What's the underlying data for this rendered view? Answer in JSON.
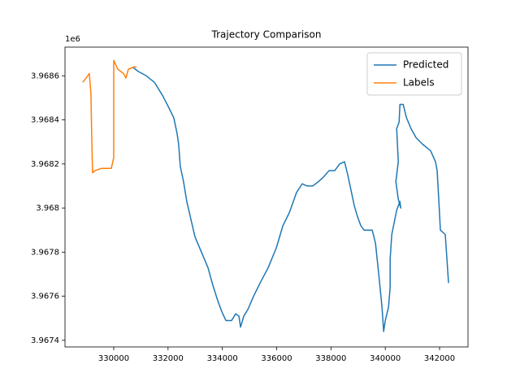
{
  "chart_data": {
    "type": "line",
    "title": "Trajectory Comparison",
    "y_offset_label": "1e6",
    "xlim": [
      328205,
      343047
    ],
    "ylim": [
      3.96737,
      3.96873
    ],
    "xticks": [
      330000,
      332000,
      334000,
      336000,
      338000,
      340000,
      342000
    ],
    "yticks": [
      3.9674,
      3.9676,
      3.9678,
      3.968,
      3.9682,
      3.9684,
      3.9686
    ],
    "grid": false,
    "legend_loc": "upper right",
    "series": [
      {
        "name": "Predicted",
        "color": "#1f77b4",
        "x": [
          330690,
          330900,
          331200,
          331500,
          331800,
          332010,
          332210,
          332330,
          332390,
          332450,
          332570,
          332690,
          332840,
          332990,
          333230,
          333470,
          333650,
          333830,
          333980,
          334130,
          334340,
          334490,
          334610,
          334670,
          334790,
          334940,
          335150,
          335390,
          335690,
          335990,
          336230,
          336470,
          336730,
          336940,
          337120,
          337330,
          337540,
          337720,
          337930,
          338140,
          338320,
          338500,
          338620,
          338740,
          338860,
          338980,
          339100,
          339220,
          339340,
          339520,
          339640,
          339760,
          339880,
          339940,
          340000,
          340120,
          340180,
          340180,
          340240,
          340420,
          340540,
          340570,
          340480,
          340390,
          340480,
          340420,
          340510,
          340540,
          340660,
          340780,
          340950,
          341130,
          341370,
          341670,
          341850,
          341910,
          341970,
          342030,
          342210,
          342270,
          342330
        ],
        "values": [
          3.96864,
          3.96862,
          3.9686,
          3.96857,
          3.96851,
          3.96846,
          3.96841,
          3.96834,
          3.96829,
          3.96819,
          3.96812,
          3.96803,
          3.96795,
          3.96787,
          3.9678,
          3.96773,
          3.96765,
          3.96758,
          3.96753,
          3.96749,
          3.96749,
          3.96752,
          3.96751,
          3.96746,
          3.96751,
          3.96754,
          3.9676,
          3.96766,
          3.96773,
          3.96782,
          3.96792,
          3.96798,
          3.96807,
          3.96811,
          3.9681,
          3.9681,
          3.96812,
          3.96814,
          3.96817,
          3.96817,
          3.9682,
          3.96821,
          3.96815,
          3.96808,
          3.96801,
          3.96796,
          3.96792,
          3.9679,
          3.9679,
          3.9679,
          3.96784,
          3.9677,
          3.96755,
          3.96744,
          3.96749,
          3.96755,
          3.96764,
          3.96777,
          3.96788,
          3.96799,
          3.96803,
          3.968,
          3.96804,
          3.96812,
          3.96821,
          3.96836,
          3.96839,
          3.96847,
          3.96847,
          3.96841,
          3.96836,
          3.96832,
          3.96829,
          3.96826,
          3.96821,
          3.96817,
          3.96804,
          3.9679,
          3.96788,
          3.96777,
          3.96766
        ]
      },
      {
        "name": "Labels",
        "color": "#ff7f0e",
        "x": [
          328860,
          329040,
          329100,
          329160,
          329190,
          329220,
          329310,
          329550,
          329760,
          329910,
          330000,
          330000,
          330000,
          330150,
          330360,
          330450,
          330540,
          330750,
          330840
        ],
        "values": [
          3.96857,
          3.9686,
          3.96861,
          3.96852,
          3.96832,
          3.96816,
          3.96817,
          3.96818,
          3.96818,
          3.96818,
          3.96823,
          3.9685,
          3.96867,
          3.96863,
          3.96861,
          3.96859,
          3.96863,
          3.96864,
          3.96864
        ]
      }
    ]
  }
}
